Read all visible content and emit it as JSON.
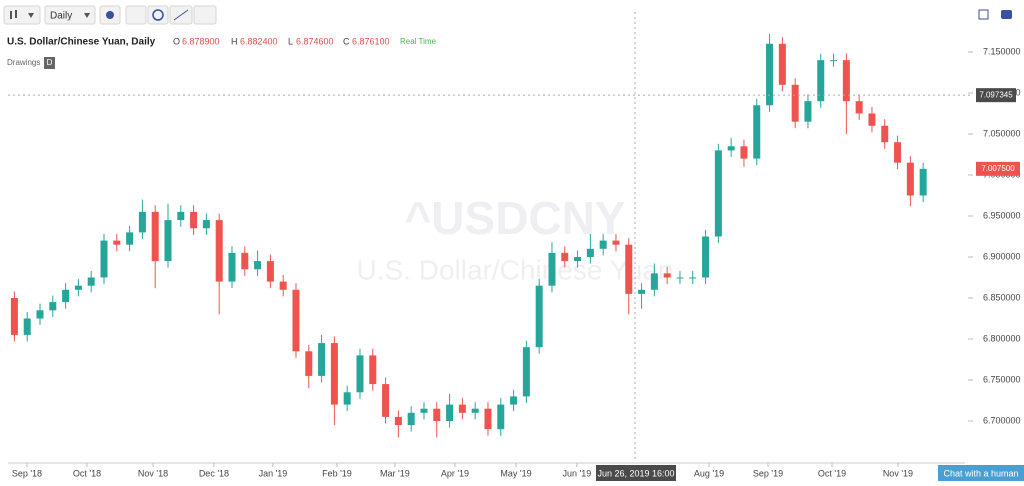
{
  "toolbar": {
    "interval": "Daily"
  },
  "header": {
    "title": "U.S. Dollar/Chinese Yuan, Daily",
    "o_label": "O",
    "o": "6.878900",
    "h_label": "H",
    "h": "6.882400",
    "l_label": "L",
    "l": "6.874600",
    "c_label": "C",
    "c": "6.876100",
    "status": "Real Time",
    "drawings": "Drawings",
    "drawings_badge": "D"
  },
  "watermark": {
    "symbol": "^USDCNY",
    "name": "U.S. Dollar/Chinese Yuan"
  },
  "crosshair": {
    "price": 7.097345,
    "time": "Jun 26, 2019 16:00"
  },
  "chat_button": "Chat with a human",
  "chart_data": {
    "type": "candlestick",
    "up_color": "#26a69a",
    "down_color": "#ef5350",
    "last_price": {
      "value": 7.0075,
      "label": "7.007500"
    },
    "open": [
      6.85,
      6.805,
      6.825,
      6.835,
      6.845,
      6.86,
      6.865,
      6.875,
      6.92,
      6.915,
      6.93,
      6.955,
      6.895,
      6.945,
      6.955,
      6.935,
      6.945,
      6.87,
      6.905,
      6.885,
      6.895,
      6.87,
      6.86,
      6.785,
      6.755,
      6.795,
      6.72,
      6.735,
      6.78,
      6.745,
      6.705,
      6.695,
      6.71,
      6.715,
      6.7,
      6.72,
      6.71,
      6.715,
      6.69,
      6.72,
      6.73,
      6.79,
      6.865,
      6.905,
      6.895,
      6.9,
      6.91,
      6.92,
      6.915,
      6.855,
      6.86,
      6.88,
      6.875,
      6.875,
      6.875,
      6.925,
      7.03,
      7.035,
      7.02,
      7.085,
      7.16,
      7.11,
      7.065,
      7.09,
      7.14,
      7.14,
      7.09,
      7.075,
      7.06,
      7.04,
      7.015,
      6.975
    ],
    "high": [
      6.858,
      6.833,
      6.843,
      6.853,
      6.868,
      6.873,
      6.883,
      6.928,
      6.928,
      6.938,
      6.97,
      6.963,
      6.965,
      6.963,
      6.963,
      6.953,
      6.953,
      6.913,
      6.913,
      6.908,
      6.903,
      6.878,
      6.868,
      6.793,
      6.805,
      6.803,
      6.743,
      6.788,
      6.788,
      6.753,
      6.713,
      6.718,
      6.723,
      6.723,
      6.733,
      6.728,
      6.723,
      6.723,
      6.728,
      6.738,
      6.798,
      6.873,
      6.918,
      6.913,
      6.908,
      6.928,
      6.928,
      6.928,
      6.923,
      6.868,
      6.892,
      6.888,
      6.883,
      6.883,
      6.933,
      7.038,
      7.045,
      7.043,
      7.093,
      7.172,
      7.168,
      7.118,
      7.098,
      7.148,
      7.148,
      7.148,
      7.098,
      7.083,
      7.068,
      7.048,
      7.023,
      7.015
    ],
    "low": [
      6.797,
      6.797,
      6.817,
      6.827,
      6.837,
      6.852,
      6.857,
      6.867,
      6.907,
      6.907,
      6.922,
      6.862,
      6.887,
      6.937,
      6.927,
      6.927,
      6.83,
      6.862,
      6.877,
      6.877,
      6.862,
      6.852,
      6.777,
      6.74,
      6.747,
      6.695,
      6.712,
      6.727,
      6.737,
      6.697,
      6.68,
      6.687,
      6.702,
      6.68,
      6.692,
      6.702,
      6.702,
      6.682,
      6.682,
      6.712,
      6.722,
      6.782,
      6.857,
      6.887,
      6.887,
      6.892,
      6.902,
      6.907,
      6.83,
      6.837,
      6.852,
      6.867,
      6.867,
      6.867,
      6.867,
      6.917,
      7.022,
      7.01,
      7.012,
      7.077,
      7.102,
      7.057,
      7.057,
      7.082,
      7.132,
      7.05,
      7.067,
      7.052,
      7.032,
      7.007,
      6.962,
      6.967
    ],
    "close": [
      6.805,
      6.825,
      6.835,
      6.845,
      6.86,
      6.865,
      6.875,
      6.92,
      6.915,
      6.93,
      6.955,
      6.895,
      6.945,
      6.955,
      6.935,
      6.945,
      6.87,
      6.905,
      6.885,
      6.895,
      6.87,
      6.86,
      6.785,
      6.755,
      6.795,
      6.72,
      6.735,
      6.78,
      6.745,
      6.705,
      6.695,
      6.71,
      6.715,
      6.7,
      6.72,
      6.71,
      6.715,
      6.69,
      6.72,
      6.73,
      6.79,
      6.865,
      6.905,
      6.895,
      6.9,
      6.91,
      6.92,
      6.915,
      6.855,
      6.86,
      6.88,
      6.875,
      6.875,
      6.875,
      6.925,
      7.03,
      7.035,
      7.02,
      7.085,
      7.16,
      7.11,
      7.065,
      7.09,
      7.14,
      7.14,
      7.09,
      7.075,
      7.06,
      7.04,
      7.015,
      6.975,
      7.0075
    ],
    "xlim": [
      0,
      74.77
    ],
    "xticks": [
      {
        "value": 1.48,
        "label": "Sep '18"
      },
      {
        "value": 6.17,
        "label": "Oct '18"
      },
      {
        "value": 11.33,
        "label": "Nov '18"
      },
      {
        "value": 16.09,
        "label": "Dec '18"
      },
      {
        "value": 20.7,
        "label": "Jan '19"
      },
      {
        "value": 25.7,
        "label": "Feb '19"
      },
      {
        "value": 30.23,
        "label": "Mar '19"
      },
      {
        "value": 34.92,
        "label": "Apr '19"
      },
      {
        "value": 39.69,
        "label": "May '19"
      },
      {
        "value": 44.45,
        "label": "Jun '19"
      },
      {
        "value": 54.77,
        "label": "Aug '19"
      },
      {
        "value": 59.38,
        "label": "Sep '19"
      },
      {
        "value": 64.38,
        "label": "Oct '19"
      },
      {
        "value": 69.53,
        "label": "Nov '19"
      }
    ],
    "ylim": [
      6.65,
      7.1768
    ],
    "yticks": [
      {
        "value": 6.7,
        "label": "6.700000"
      },
      {
        "value": 6.75,
        "label": "6.750000"
      },
      {
        "value": 6.8,
        "label": "6.800000"
      },
      {
        "value": 6.85,
        "label": "6.850000"
      },
      {
        "value": 6.9,
        "label": "6.900000"
      },
      {
        "value": 6.95,
        "label": "6.950000"
      },
      {
        "value": 7.0,
        "label": "7.000000"
      },
      {
        "value": 7.05,
        "label": "7.050000"
      },
      {
        "value": 7.1,
        "label": "7.100000"
      },
      {
        "value": 7.15,
        "label": "7.150000"
      }
    ]
  }
}
